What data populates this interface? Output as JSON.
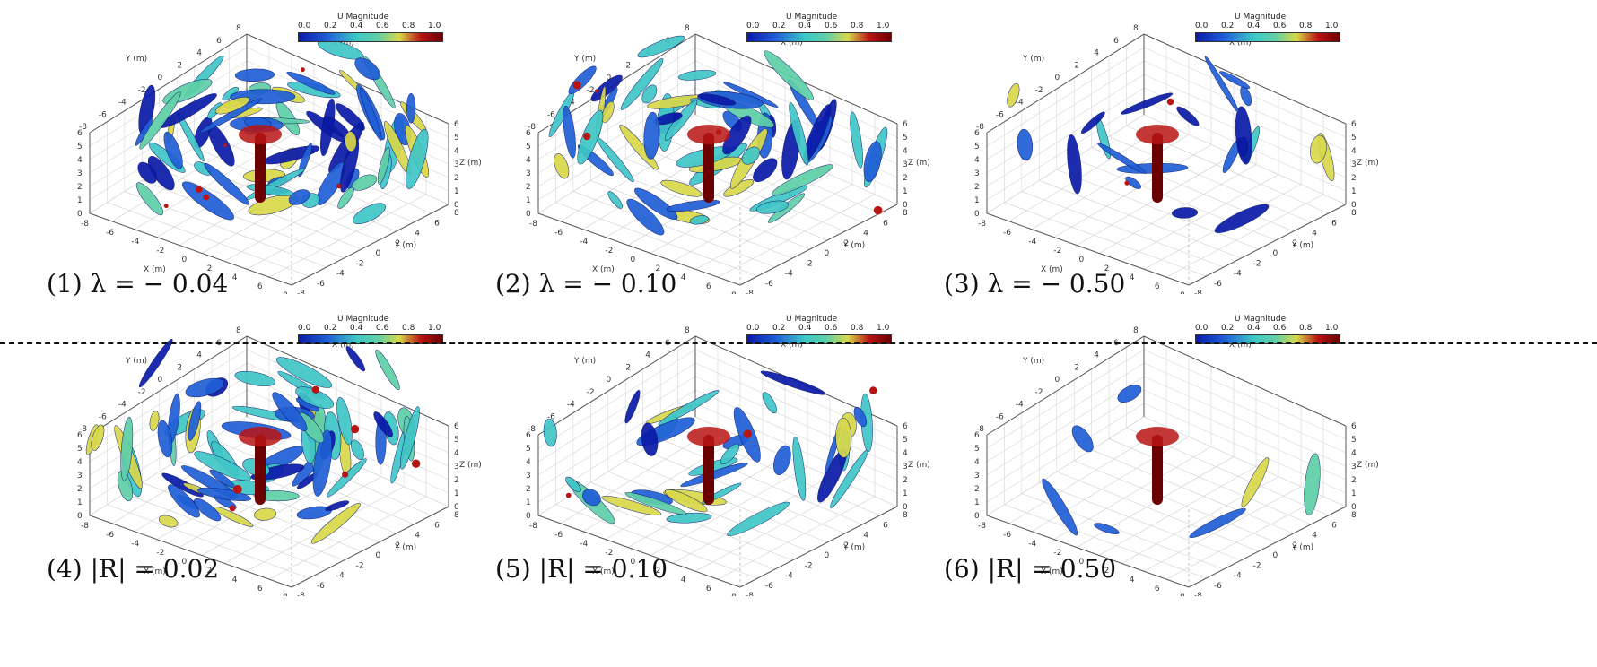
{
  "colorbar": {
    "title": "U Magnitude",
    "ticks": [
      "0.0",
      "0.2",
      "0.4",
      "0.6",
      "0.8",
      "1.0"
    ],
    "range": [
      0.0,
      1.0
    ]
  },
  "axis_labels": {
    "x": "X (m)",
    "y": "Y (m)",
    "z": "Z (m)"
  },
  "panels": [
    {
      "caption": "(1) λ = − 0.04",
      "density": 1.0,
      "criterion": "lambda"
    },
    {
      "caption": "(2) λ = − 0.10",
      "density": 0.85,
      "criterion": "lambda"
    },
    {
      "caption": "(3) λ = − 0.50",
      "density": 0.25,
      "criterion": "lambda"
    },
    {
      "caption": "(4) |R| = 0.02",
      "density": 1.0,
      "criterion": "R"
    },
    {
      "caption": "(5) |R| = 0.10",
      "density": 0.45,
      "criterion": "R"
    },
    {
      "caption": "(6) |R| = 0.50",
      "density": 0.05,
      "criterion": "R"
    }
  ],
  "colors": {
    "deep_blue": "#0a1aa8",
    "blue": "#1f5fd6",
    "cyan": "#3fc6c6",
    "teal": "#5fcfa8",
    "yellow": "#d8d84a",
    "red": "#b81414",
    "dark_red": "#6b0000"
  }
}
